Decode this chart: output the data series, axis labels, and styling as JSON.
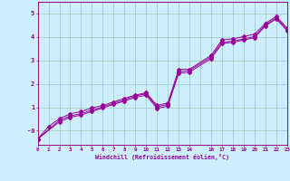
{
  "xlabel": "Windchill (Refroidissement éolien,°C)",
  "bg_color": "#cceeff",
  "grid_color": "#99ccbb",
  "line_color": "#990099",
  "xlim": [
    0,
    23
  ],
  "ylim": [
    -0.6,
    5.5
  ],
  "xticks": [
    0,
    1,
    2,
    3,
    4,
    5,
    6,
    7,
    8,
    9,
    10,
    11,
    12,
    13,
    14,
    16,
    17,
    18,
    19,
    20,
    21,
    22,
    23
  ],
  "yticks": [
    0,
    1,
    2,
    3,
    4,
    5
  ],
  "ytick_labels": [
    "-0",
    "1",
    "2",
    "3",
    "4",
    "5"
  ],
  "line1_x": [
    0,
    1,
    2,
    3,
    4,
    5,
    6,
    7,
    8,
    9,
    10,
    11,
    12,
    13,
    14,
    16,
    17,
    18,
    19,
    20,
    21,
    22,
    23
  ],
  "line1_y": [
    -0.35,
    0.18,
    0.52,
    0.72,
    0.82,
    0.97,
    1.08,
    1.23,
    1.38,
    1.52,
    1.62,
    1.08,
    1.18,
    2.62,
    2.62,
    3.22,
    3.88,
    3.92,
    4.02,
    4.12,
    4.58,
    4.88,
    4.38
  ],
  "line2_x": [
    0,
    2,
    3,
    4,
    5,
    6,
    7,
    8,
    9,
    10,
    11,
    12,
    13,
    14,
    16,
    17,
    18,
    19,
    20,
    21,
    22,
    23
  ],
  "line2_y": [
    -0.35,
    0.45,
    0.63,
    0.73,
    0.88,
    1.02,
    1.17,
    1.32,
    1.48,
    1.58,
    1.02,
    1.12,
    2.52,
    2.57,
    3.15,
    3.78,
    3.82,
    3.92,
    4.02,
    4.52,
    4.82,
    4.32
  ],
  "line3_x": [
    0,
    2,
    3,
    4,
    5,
    6,
    7,
    8,
    9,
    10,
    11,
    12,
    13,
    14,
    16,
    17,
    18,
    19,
    20,
    21,
    22,
    23
  ],
  "line3_y": [
    -0.35,
    0.38,
    0.57,
    0.67,
    0.82,
    0.97,
    1.12,
    1.27,
    1.42,
    1.52,
    0.95,
    1.05,
    2.45,
    2.5,
    3.08,
    3.72,
    3.77,
    3.87,
    3.97,
    4.47,
    4.77,
    4.27
  ]
}
